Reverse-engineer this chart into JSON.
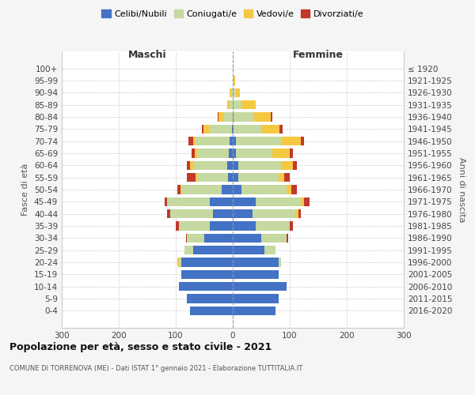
{
  "age_groups": [
    "0-4",
    "5-9",
    "10-14",
    "15-19",
    "20-24",
    "25-29",
    "30-34",
    "35-39",
    "40-44",
    "45-49",
    "50-54",
    "55-59",
    "60-64",
    "65-69",
    "70-74",
    "75-79",
    "80-84",
    "85-89",
    "90-94",
    "95-99",
    "100+"
  ],
  "birth_years": [
    "2016-2020",
    "2011-2015",
    "2006-2010",
    "2001-2005",
    "1996-2000",
    "1991-1995",
    "1986-1990",
    "1981-1985",
    "1976-1980",
    "1971-1975",
    "1966-1970",
    "1961-1965",
    "1956-1960",
    "1951-1955",
    "1946-1950",
    "1941-1945",
    "1936-1940",
    "1931-1935",
    "1926-1930",
    "1921-1925",
    "≤ 1920"
  ],
  "male": {
    "celibi": [
      75,
      80,
      95,
      90,
      90,
      70,
      50,
      40,
      35,
      40,
      20,
      8,
      10,
      7,
      5,
      2,
      0,
      0,
      0,
      0,
      0
    ],
    "coniugati": [
      0,
      0,
      0,
      0,
      5,
      15,
      30,
      55,
      75,
      75,
      70,
      55,
      60,
      55,
      60,
      40,
      15,
      5,
      3,
      0,
      0
    ],
    "vedovi": [
      0,
      0,
      0,
      0,
      2,
      0,
      0,
      0,
      0,
      0,
      2,
      2,
      5,
      5,
      5,
      10,
      10,
      5,
      2,
      0,
      0
    ],
    "divorziati": [
      0,
      0,
      0,
      0,
      0,
      0,
      2,
      5,
      5,
      5,
      5,
      15,
      5,
      5,
      8,
      2,
      2,
      0,
      0,
      0,
      0
    ]
  },
  "female": {
    "celibi": [
      75,
      80,
      95,
      80,
      80,
      55,
      50,
      40,
      35,
      40,
      15,
      10,
      10,
      5,
      5,
      2,
      2,
      0,
      0,
      0,
      0
    ],
    "coniugati": [
      0,
      0,
      0,
      0,
      5,
      20,
      45,
      60,
      75,
      80,
      80,
      70,
      75,
      65,
      80,
      50,
      35,
      15,
      5,
      2,
      0
    ],
    "vedovi": [
      0,
      0,
      0,
      0,
      0,
      0,
      0,
      0,
      5,
      5,
      8,
      10,
      20,
      30,
      35,
      30,
      30,
      25,
      8,
      2,
      2
    ],
    "divorziati": [
      0,
      0,
      0,
      0,
      0,
      0,
      2,
      5,
      5,
      10,
      10,
      10,
      8,
      5,
      5,
      5,
      2,
      0,
      0,
      0,
      0
    ]
  },
  "colors": {
    "celibi": "#4472c4",
    "coniugati": "#c5d9a0",
    "vedovi": "#f5c842",
    "divorziati": "#c0392b"
  },
  "title": "Popolazione per età, sesso e stato civile - 2021",
  "subtitle": "COMUNE DI TORRENOVA (ME) - Dati ISTAT 1° gennaio 2021 - Elaborazione TUTTITALIA.IT",
  "xlabel_left": "Maschi",
  "xlabel_right": "Femmine",
  "ylabel_left": "Fasce di età",
  "ylabel_right": "Anni di nascita",
  "xlim": 300,
  "legend_labels": [
    "Celibi/Nubili",
    "Coniugati/e",
    "Vedovi/e",
    "Divorziati/e"
  ],
  "bg_color": "#f5f5f5",
  "plot_bg": "#ffffff"
}
